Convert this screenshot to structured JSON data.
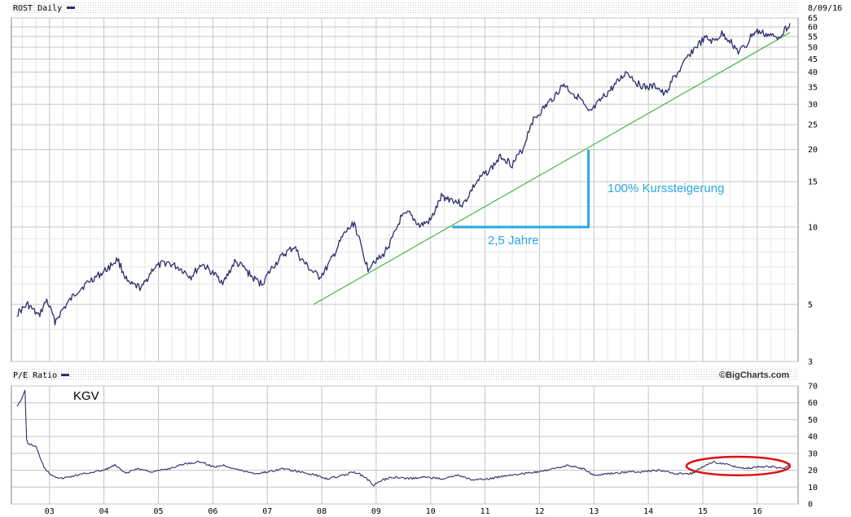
{
  "chart_data": [
    {
      "type": "line",
      "title": "ROST Daily",
      "date_label": "8/09/16",
      "scale": "log",
      "ylim": [
        3,
        65
      ],
      "y_ticks": [
        3,
        5,
        10,
        15,
        20,
        25,
        30,
        35,
        40,
        45,
        50,
        55,
        60,
        65
      ],
      "x_ticks": [
        "03",
        "04",
        "05",
        "06",
        "07",
        "08",
        "09",
        "10",
        "11",
        "12",
        "13",
        "14",
        "15",
        "16"
      ],
      "grid": true,
      "series": [
        {
          "name": "ROST Daily",
          "color": "#2e2e6e",
          "x": [
            2002.4,
            2002.6,
            2002.8,
            2002.95,
            2003.1,
            2003.25,
            2003.5,
            2003.75,
            2004.0,
            2004.25,
            2004.45,
            2004.7,
            2004.9,
            2005.15,
            2005.4,
            2005.6,
            2005.8,
            2006.0,
            2006.2,
            2006.4,
            2006.55,
            2006.75,
            2006.9,
            2007.1,
            2007.3,
            2007.5,
            2007.6,
            2007.8,
            2007.95,
            2008.05,
            2008.2,
            2008.4,
            2008.6,
            2008.75,
            2008.85,
            2008.95,
            2009.1,
            2009.3,
            2009.45,
            2009.6,
            2009.8,
            2010.0,
            2010.2,
            2010.4,
            2010.6,
            2010.8,
            2010.95,
            2011.1,
            2011.3,
            2011.5,
            2011.7,
            2011.85,
            2012.05,
            2012.25,
            2012.45,
            2012.55,
            2012.75,
            2012.9,
            2013.0,
            2013.2,
            2013.4,
            2013.6,
            2013.8,
            2013.95,
            2014.15,
            2014.3,
            2014.45,
            2014.6,
            2014.75,
            2014.9,
            2015.05,
            2015.2,
            2015.35,
            2015.5,
            2015.65,
            2015.8,
            2015.9,
            2016.0,
            2016.2,
            2016.35,
            2016.5,
            2016.6
          ],
          "values": [
            4.6,
            5.0,
            4.5,
            5.2,
            4.3,
            4.8,
            5.6,
            6.2,
            6.7,
            7.5,
            6.0,
            5.8,
            6.9,
            7.3,
            6.9,
            6.4,
            7.2,
            6.6,
            6.1,
            7.3,
            7.0,
            6.3,
            6.0,
            7.0,
            7.8,
            8.4,
            7.6,
            6.8,
            6.4,
            6.7,
            7.6,
            9.3,
            10.4,
            8.0,
            6.9,
            7.4,
            7.6,
            9.0,
            10.8,
            11.3,
            10.1,
            10.6,
            13.1,
            12.8,
            12.2,
            14.5,
            15.8,
            16.8,
            18.9,
            17.5,
            20.2,
            25.5,
            28.5,
            31.8,
            36.0,
            34.0,
            31.5,
            27.6,
            28.9,
            32.4,
            35.8,
            40.2,
            36.2,
            34.8,
            35.3,
            32.5,
            37.5,
            41.3,
            46.8,
            50.8,
            54.2,
            52.5,
            56.3,
            53.2,
            48.0,
            50.5,
            56.0,
            57.5,
            55.8,
            54.5,
            58.0,
            62.0
          ]
        }
      ],
      "trendline": {
        "color": "#22aa22",
        "x": [
          2007.85,
          2016.6
        ],
        "values": [
          5.0,
          57.0
        ]
      },
      "annotations": [
        {
          "text": "100% Kurssteigerung",
          "color": "#2aa8e0"
        },
        {
          "text": "2,5 Jahre",
          "color": "#2aa8e0"
        }
      ],
      "bracket": {
        "x_start": 2010.4,
        "x_end": 2012.9,
        "y_start": 10,
        "y_end": 20
      }
    },
    {
      "type": "line",
      "title": "P/E Ratio",
      "ylim": [
        0,
        70
      ],
      "y_ticks": [
        0,
        10,
        20,
        30,
        40,
        50,
        60,
        70
      ],
      "x_ticks": [
        "03",
        "04",
        "05",
        "06",
        "07",
        "08",
        "09",
        "10",
        "11",
        "12",
        "13",
        "14",
        "15",
        "16"
      ],
      "grid": true,
      "series": [
        {
          "name": "P/E Ratio",
          "label": "KGV",
          "color": "#2e2e6e",
          "x": [
            2002.4,
            2002.5,
            2002.55,
            2002.58,
            2002.6,
            2002.75,
            2002.9,
            2003.0,
            2003.2,
            2003.5,
            2003.8,
            2004.0,
            2004.2,
            2004.4,
            2004.6,
            2004.9,
            2005.2,
            2005.5,
            2005.8,
            2006.0,
            2006.2,
            2006.5,
            2006.8,
            2007.0,
            2007.3,
            2007.6,
            2007.9,
            2008.1,
            2008.4,
            2008.6,
            2008.8,
            2008.95,
            2009.1,
            2009.3,
            2009.6,
            2009.9,
            2010.2,
            2010.5,
            2010.8,
            2011.1,
            2011.4,
            2011.7,
            2012.0,
            2012.3,
            2012.5,
            2012.8,
            2013.0,
            2013.3,
            2013.6,
            2013.9,
            2014.2,
            2014.5,
            2014.8,
            2015.0,
            2015.2,
            2015.5,
            2015.8,
            2016.0,
            2016.3,
            2016.5,
            2016.6
          ],
          "values": [
            58,
            63,
            67,
            38,
            36,
            34,
            22,
            18,
            15,
            17,
            19,
            20,
            23,
            18,
            21,
            19,
            21,
            24,
            25,
            22,
            23,
            20,
            18,
            19,
            21,
            19,
            17,
            15,
            17,
            19,
            16,
            11,
            14,
            16,
            15,
            16,
            15,
            17,
            14,
            15,
            17,
            18,
            19,
            21,
            23,
            21,
            17,
            18,
            19,
            19,
            20,
            18,
            18,
            22,
            25,
            23,
            21,
            22,
            22,
            21,
            24
          ]
        }
      ],
      "highlight_ellipse": {
        "color": "#dd1111",
        "x_center": 2015.65,
        "y_center": 22.5,
        "x_radius": 0.95,
        "y_radius": 5.5
      }
    }
  ],
  "footer": {
    "brand": "©BigCharts.com"
  }
}
